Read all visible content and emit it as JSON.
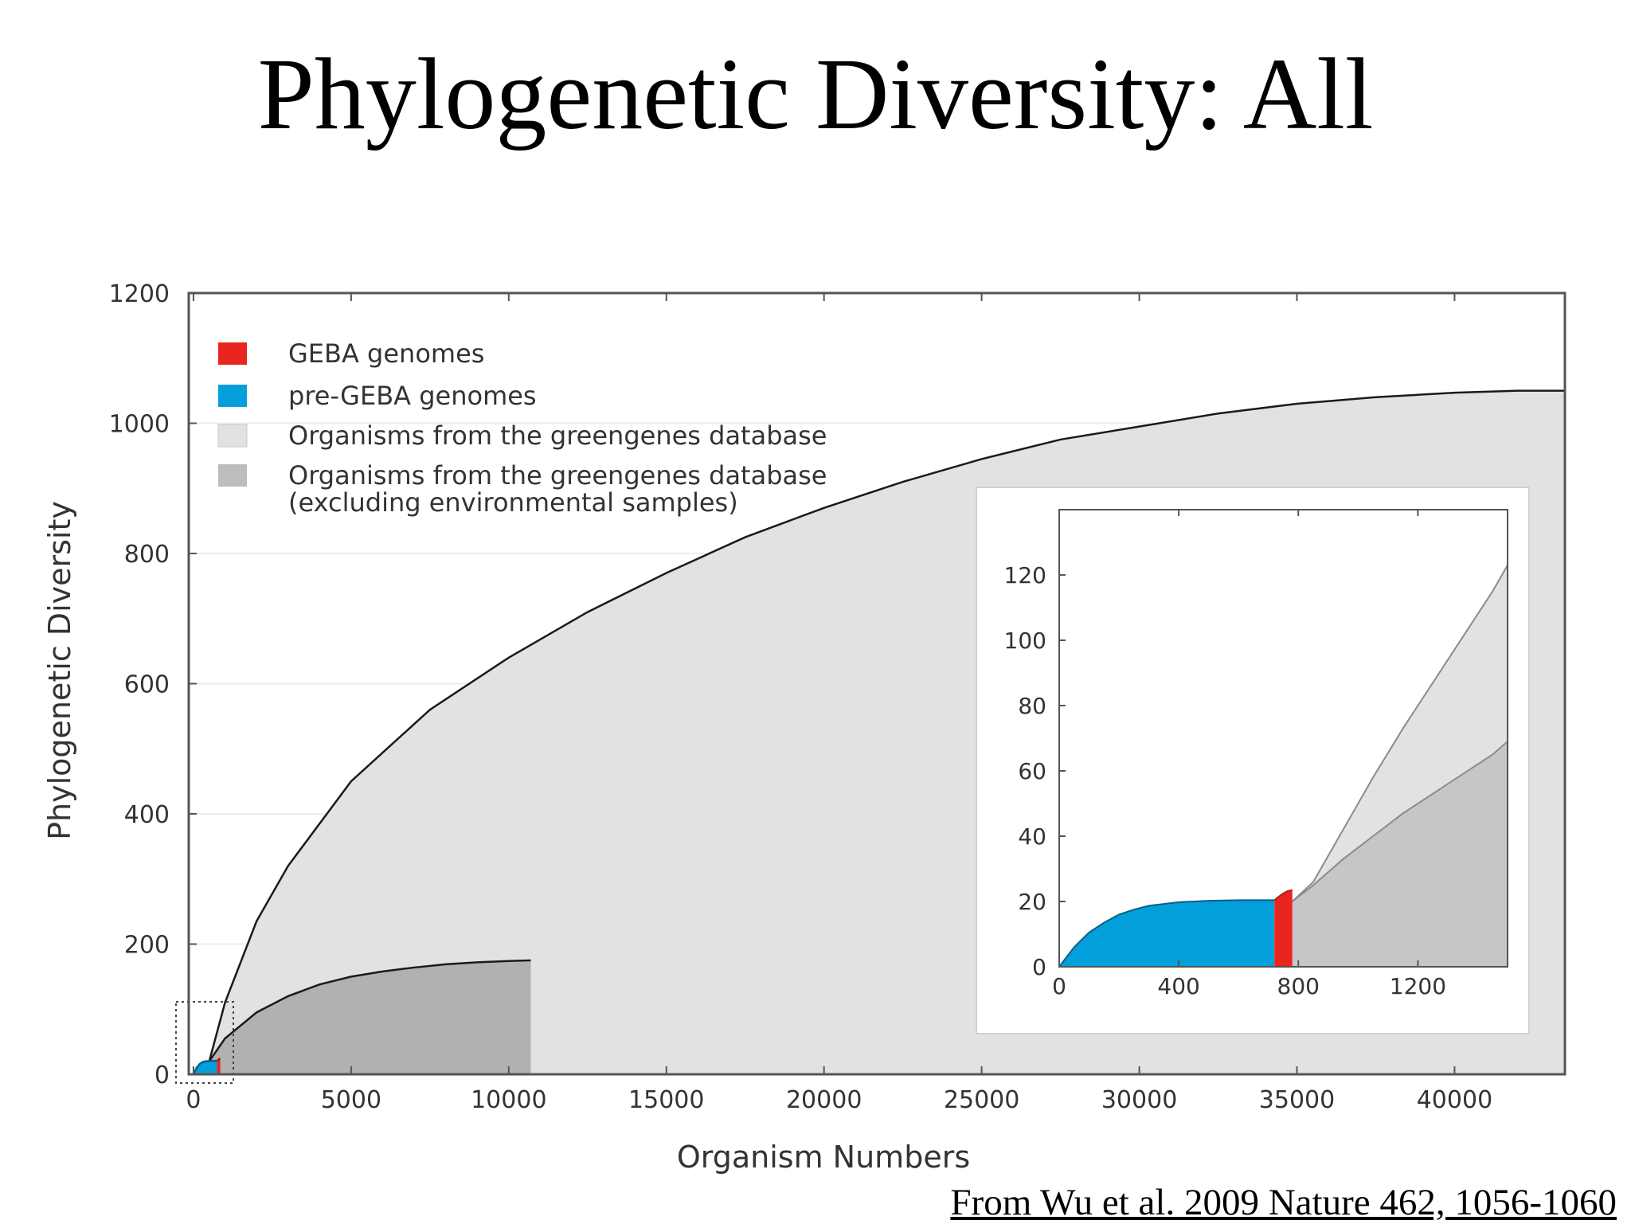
{
  "slide": {
    "title": "Phylogenetic Diversity: All",
    "citation": "From Wu et al. 2009 Nature 462, 1056-1060"
  },
  "chart_data": [
    {
      "type": "area",
      "xlabel": "Organism Numbers",
      "ylabel": "Phylogenetic Diversity",
      "xlim": [
        -150,
        43500
      ],
      "ylim": [
        0,
        1200
      ],
      "xticks": [
        0,
        5000,
        10000,
        15000,
        20000,
        25000,
        30000,
        35000,
        40000
      ],
      "yticks": [
        0,
        200,
        400,
        600,
        800,
        1000,
        1200
      ],
      "grid": true,
      "legend_position": "top-left",
      "legend": [
        {
          "label": "GEBA genomes",
          "color": "#e8251f"
        },
        {
          "label": "pre-GEBA genomes",
          "color": "#039fdb"
        },
        {
          "label": "Organisms from the greengenes database",
          "color": "#e0e2e3"
        },
        {
          "label": "Organisms from the greengenes database\n(excluding environmental samples)",
          "color": "#bcbdbf"
        }
      ],
      "series": [
        {
          "name": "Organisms from the greengenes database",
          "color": "#e0e2e3",
          "x": [
            500,
            1000,
            2000,
            3000,
            5000,
            7500,
            10000,
            12500,
            15000,
            17500,
            20000,
            22500,
            25000,
            27500,
            30000,
            32500,
            35000,
            37500,
            40000,
            42000,
            43500
          ],
          "y": [
            20,
            110,
            235,
            320,
            450,
            560,
            640,
            710,
            770,
            825,
            870,
            910,
            945,
            975,
            995,
            1015,
            1030,
            1040,
            1047,
            1050,
            1050
          ]
        },
        {
          "name": "Organisms from the greengenes database (excluding environmental samples)",
          "color": "#b0b1b3",
          "x": [
            500,
            1000,
            2000,
            3000,
            4000,
            5000,
            6000,
            7000,
            8000,
            9000,
            10000,
            10700
          ],
          "y": [
            20,
            55,
            95,
            120,
            138,
            150,
            158,
            164,
            169,
            172,
            174,
            175
          ]
        },
        {
          "name": "pre-GEBA genomes",
          "color": "#039fdb",
          "x": [
            0,
            100,
            200,
            300,
            400,
            500,
            600,
            700,
            750
          ],
          "y": [
            0,
            10,
            16,
            19,
            20,
            20.3,
            20.5,
            20.5,
            20.5
          ]
        },
        {
          "name": "GEBA genomes",
          "color": "#e8251f",
          "x": [
            750,
            780,
            810,
            850
          ],
          "y": [
            20.5,
            22,
            23.5,
            24
          ]
        }
      ]
    },
    {
      "type": "area",
      "xlim": [
        0,
        1500
      ],
      "ylim": [
        0,
        140
      ],
      "xticks": [
        0,
        400,
        800,
        1200
      ],
      "yticks": [
        0,
        20,
        40,
        60,
        80,
        100,
        120
      ],
      "series": [
        {
          "name": "Organisms from the greengenes database",
          "color": "#e0e2e3",
          "x": [
            780,
            850,
            950,
            1050,
            1150,
            1250,
            1350,
            1450,
            1500
          ],
          "y": [
            20,
            26,
            42,
            58,
            73,
            87,
            101,
            115,
            123
          ]
        },
        {
          "name": "Organisms from the greengenes database (excluding environmental samples)",
          "color": "#c5c6c8",
          "x": [
            780,
            850,
            950,
            1050,
            1150,
            1250,
            1350,
            1450,
            1500
          ],
          "y": [
            20,
            25,
            33,
            40,
            47,
            53,
            59,
            65,
            69
          ]
        },
        {
          "name": "pre-GEBA genomes",
          "color": "#039fdb",
          "x": [
            0,
            50,
            100,
            150,
            200,
            250,
            300,
            400,
            500,
            600,
            720
          ],
          "y": [
            0,
            6,
            10.5,
            13.5,
            16,
            17.5,
            18.7,
            19.8,
            20.2,
            20.4,
            20.4
          ]
        },
        {
          "name": "GEBA genomes",
          "color": "#e8251f",
          "x": [
            720,
            735,
            750,
            765,
            780
          ],
          "y": [
            20.4,
            21.5,
            22.5,
            23.2,
            23.5
          ]
        }
      ]
    }
  ]
}
